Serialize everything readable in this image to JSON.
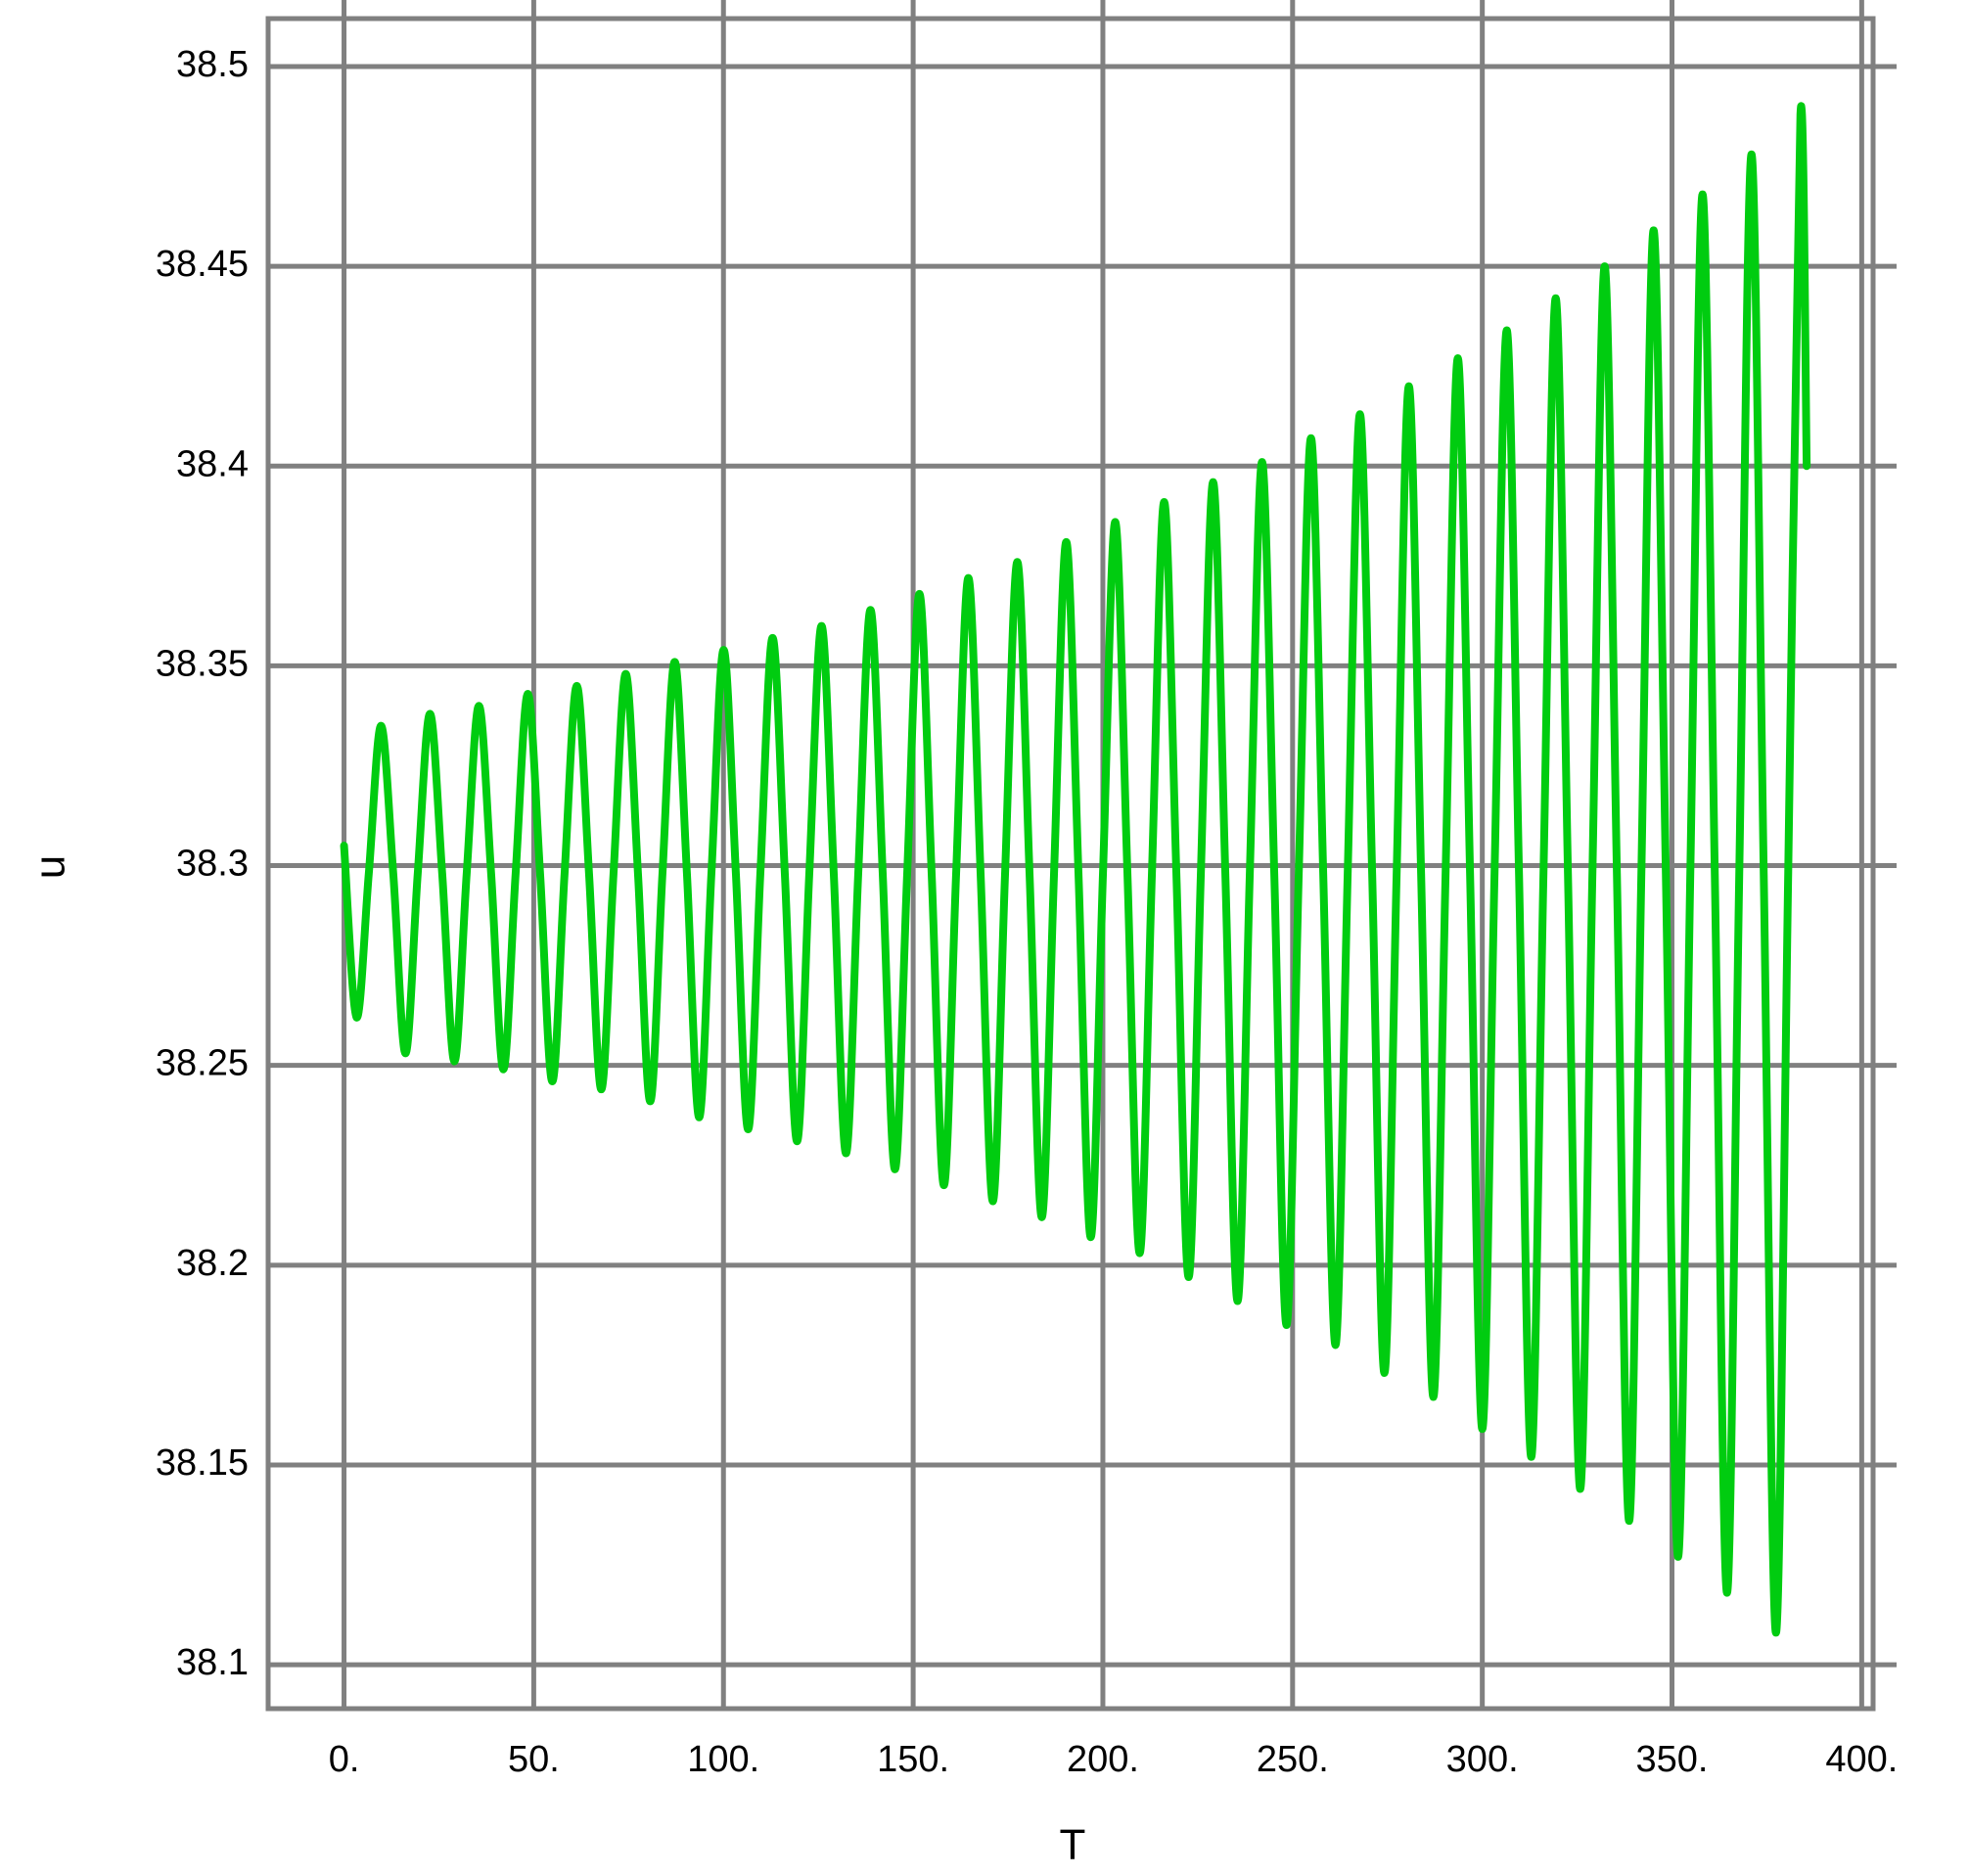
{
  "chart_data": {
    "type": "line",
    "xlabel": "T",
    "ylabel": "u",
    "color": "#00cc10",
    "grid": true,
    "xlim": [
      -20,
      403
    ],
    "ylim": [
      38.089,
      38.512
    ],
    "xticks": [
      {
        "value": 0,
        "label": "0."
      },
      {
        "value": 50,
        "label": "50."
      },
      {
        "value": 100,
        "label": "100."
      },
      {
        "value": 150,
        "label": "150."
      },
      {
        "value": 200,
        "label": "200."
      },
      {
        "value": 250,
        "label": "250."
      },
      {
        "value": 300,
        "label": "300."
      },
      {
        "value": 350,
        "label": "350."
      },
      {
        "value": 400,
        "label": "400."
      }
    ],
    "yticks": [
      38.1,
      38.15,
      38.2,
      38.25,
      38.3,
      38.35,
      38.4,
      38.45,
      38.5
    ],
    "x": [
      0,
      3.3,
      6.525,
      9.75,
      12.975,
      16.2,
      19.425,
      22.65,
      25.875,
      29.1,
      32.325,
      35.55,
      38.775,
      42,
      45.225,
      48.45,
      51.675,
      54.9,
      58.125,
      61.35,
      64.575,
      67.8,
      71.025,
      74.25,
      77.475,
      80.7,
      83.925,
      87.15,
      90.375,
      93.6,
      96.825,
      100.05,
      103.275,
      106.5,
      109.725,
      112.95,
      116.175,
      119.4,
      122.625,
      125.85,
      129.075,
      132.3,
      135.525,
      138.75,
      141.975,
      145.2,
      148.425,
      151.65,
      154.875,
      158.1,
      161.325,
      164.55,
      167.775,
      171,
      174.225,
      177.45,
      180.675,
      183.9,
      187.125,
      190.35,
      193.575,
      196.8,
      200.025,
      203.25,
      206.475,
      209.7,
      212.925,
      216.15,
      219.375,
      222.6,
      225.825,
      229.05,
      232.275,
      235.5,
      238.725,
      241.95,
      245.175,
      248.4,
      251.625,
      254.85,
      258.075,
      261.3,
      264.525,
      267.75,
      270.975,
      274.2,
      277.425,
      280.65,
      283.875,
      287.1,
      290.325,
      293.55,
      296.775,
      300,
      303.225,
      306.45,
      309.675,
      312.9,
      316.125,
      319.35,
      322.575,
      325.8,
      329.025,
      332.25,
      335.475,
      338.7,
      341.925,
      345.15,
      348.375,
      351.6,
      354.825,
      358.05,
      361.275,
      364.5,
      367.725,
      370.95,
      374.175,
      377.4,
      380.625,
      383.85,
      385.5
    ],
    "values": [
      38.305,
      38.262,
      38.298,
      38.335,
      38.298,
      38.253,
      38.298,
      38.338,
      38.298,
      38.251,
      38.298,
      38.34,
      38.298,
      38.249,
      38.298,
      38.343,
      38.298,
      38.246,
      38.298,
      38.345,
      38.298,
      38.244,
      38.298,
      38.348,
      38.298,
      38.241,
      38.298,
      38.351,
      38.298,
      38.237,
      38.298,
      38.354,
      38.298,
      38.234,
      38.298,
      38.357,
      38.298,
      38.231,
      38.298,
      38.36,
      38.298,
      38.228,
      38.298,
      38.364,
      38.298,
      38.224,
      38.298,
      38.368,
      38.298,
      38.22,
      38.298,
      38.372,
      38.298,
      38.216,
      38.298,
      38.376,
      38.298,
      38.212,
      38.298,
      38.381,
      38.298,
      38.207,
      38.298,
      38.386,
      38.298,
      38.203,
      38.298,
      38.391,
      38.298,
      38.197,
      38.298,
      38.396,
      38.298,
      38.191,
      38.298,
      38.401,
      38.298,
      38.185,
      38.298,
      38.407,
      38.298,
      38.18,
      38.298,
      38.413,
      38.298,
      38.173,
      38.298,
      38.42,
      38.298,
      38.167,
      38.298,
      38.427,
      38.298,
      38.159,
      38.298,
      38.434,
      38.298,
      38.152,
      38.298,
      38.442,
      38.298,
      38.144,
      38.298,
      38.45,
      38.298,
      38.136,
      38.298,
      38.459,
      38.298,
      38.127,
      38.298,
      38.468,
      38.298,
      38.118,
      38.298,
      38.478,
      38.298,
      38.108,
      38.298,
      38.488,
      38.4
    ]
  }
}
